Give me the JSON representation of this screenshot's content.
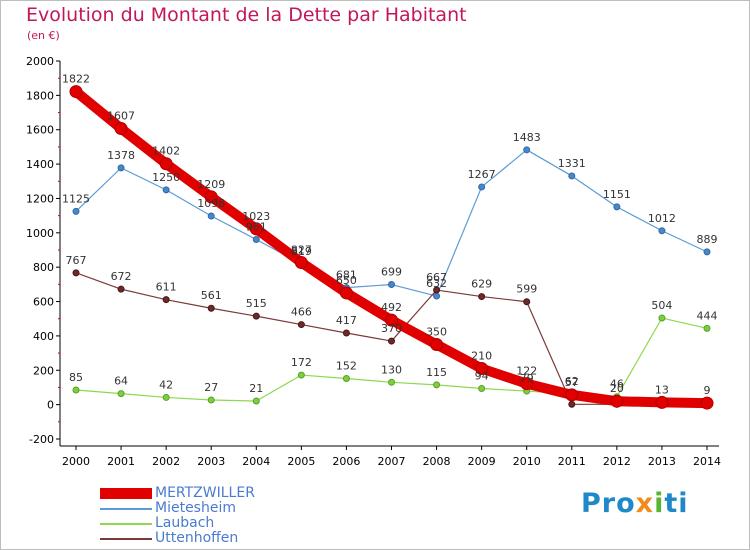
{
  "title": "Evolution du Montant de la Dette par Habitant",
  "subtitle": "(en €)",
  "logo": {
    "parts": [
      "Pro",
      "x",
      "i",
      "ti"
    ]
  },
  "chart_data": {
    "type": "line",
    "title": "Evolution du Montant de la Dette par Habitant",
    "subtitle": "(en €)",
    "xlabel": "",
    "ylabel": "",
    "x": [
      2000,
      2001,
      2002,
      2003,
      2004,
      2005,
      2006,
      2007,
      2008,
      2009,
      2010,
      2011,
      2012,
      2013,
      2014
    ],
    "y_ticks": [
      -200,
      0,
      200,
      400,
      600,
      800,
      1000,
      1200,
      1400,
      1600,
      1800,
      2000
    ],
    "ylim": [
      -200,
      2000
    ],
    "grid": false,
    "legend_position": "bottom-left",
    "series": [
      {
        "name": "MERTZWILLER",
        "color": "#e00000",
        "values": [
          1822,
          1607,
          1402,
          1209,
          1023,
          827,
          650,
          492,
          350,
          210,
          122,
          57,
          20,
          13,
          9
        ],
        "labels": [
          "1822",
          "1607",
          "1402",
          "1209",
          "1023",
          "827",
          "650",
          "492",
          "350",
          "210",
          "122",
          "57",
          "20",
          "13",
          "9"
        ]
      },
      {
        "name": "Mietesheim",
        "color": "#5b9bd5",
        "values": [
          1125,
          1378,
          1250,
          1098,
          961,
          819,
          681,
          699,
          632,
          1267,
          1483,
          1331,
          1151,
          1012,
          889
        ],
        "labels": [
          "1125",
          "1378",
          "1250",
          "1098",
          "961",
          "819",
          "681",
          "699",
          "632",
          "1267",
          "1483",
          "1331",
          "1151",
          "1012",
          "889"
        ]
      },
      {
        "name": "Laubach",
        "color": "#8ed850",
        "values": [
          85,
          64,
          42,
          27,
          21,
          172,
          152,
          130,
          115,
          94,
          79,
          62,
          46,
          504,
          444
        ],
        "labels": [
          "85",
          "64",
          "42",
          "27",
          "21",
          "172",
          "152",
          "130",
          "115",
          "94",
          "79",
          "62",
          "46",
          "504",
          "444"
        ]
      },
      {
        "name": "Uttenhoffen",
        "color": "#7b3a3a",
        "values": [
          767,
          672,
          611,
          561,
          515,
          466,
          417,
          370,
          667,
          629,
          599,
          2,
          2,
          2,
          2
        ],
        "labels": [
          "767",
          "672",
          "611",
          "561",
          "515",
          "466",
          "417",
          "370",
          "667",
          "629",
          "599",
          "",
          "",
          "",
          ""
        ]
      }
    ]
  }
}
